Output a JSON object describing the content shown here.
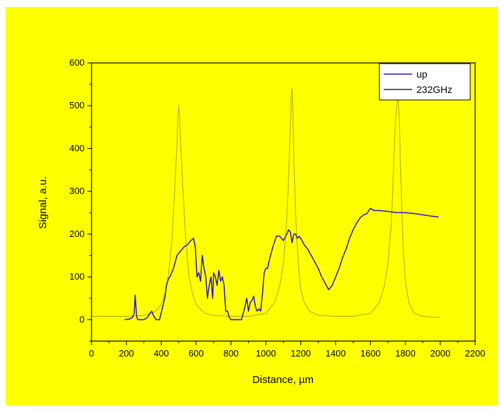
{
  "colors": {
    "background": "#ffff00",
    "up_series": "#2a14c8",
    "ghz_series": "#a8a800",
    "axis": "#000000"
  },
  "chart_data": {
    "type": "line",
    "title": "",
    "xlabel": "Distance, µm",
    "ylabel": "Signal, a.u.",
    "xlim": [
      0,
      2200
    ],
    "ylim": [
      -50,
      600
    ],
    "x_ticks": [
      0,
      200,
      400,
      600,
      800,
      1000,
      1200,
      1400,
      1600,
      1800,
      2000,
      2200
    ],
    "y_ticks": [
      0,
      100,
      200,
      300,
      400,
      500,
      600
    ],
    "grid": false,
    "legend_position": "top-right",
    "series": [
      {
        "name": "up",
        "color": "#2a14c8",
        "x": [
          190,
          220,
          235,
          245,
          250,
          258,
          265,
          300,
          320,
          335,
          345,
          355,
          370,
          390,
          405,
          420,
          430,
          440,
          450,
          470,
          490,
          510,
          530,
          550,
          570,
          585,
          595,
          605,
          615,
          625,
          635,
          645,
          655,
          665,
          675,
          685,
          695,
          700,
          710,
          720,
          730,
          740,
          750,
          760,
          770,
          780,
          790,
          800,
          810,
          830,
          860,
          880,
          890,
          900,
          910,
          920,
          930,
          940,
          950,
          960,
          970,
          980,
          990,
          1000,
          1010,
          1020,
          1040,
          1060,
          1080,
          1100,
          1120,
          1130,
          1140,
          1150,
          1160,
          1170,
          1180,
          1190,
          1200,
          1220,
          1240,
          1260,
          1280,
          1300,
          1320,
          1340,
          1360,
          1380,
          1400,
          1420,
          1440,
          1460,
          1480,
          1500,
          1520,
          1540,
          1560,
          1580,
          1590,
          1600,
          1620,
          1650,
          1700,
          1750,
          1800,
          1850,
          1900,
          1950,
          1990
        ],
        "y": [
          0,
          2,
          5,
          15,
          58,
          10,
          0,
          0,
          5,
          15,
          20,
          10,
          0,
          0,
          25,
          50,
          80,
          95,
          100,
          120,
          150,
          160,
          170,
          175,
          185,
          190,
          170,
          100,
          110,
          90,
          150,
          120,
          100,
          50,
          80,
          100,
          50,
          110,
          100,
          80,
          115,
          90,
          100,
          80,
          20,
          20,
          5,
          0,
          0,
          0,
          0,
          30,
          50,
          20,
          40,
          45,
          55,
          30,
          20,
          25,
          20,
          60,
          110,
          120,
          120,
          140,
          170,
          195,
          195,
          185,
          200,
          210,
          205,
          180,
          200,
          200,
          190,
          195,
          190,
          175,
          165,
          150,
          135,
          120,
          100,
          85,
          70,
          80,
          100,
          120,
          145,
          165,
          190,
          210,
          225,
          238,
          245,
          248,
          255,
          260,
          255,
          255,
          253,
          250,
          250,
          248,
          245,
          242,
          240
        ]
      },
      {
        "name": "232GHz",
        "color": "#a8a800",
        "x": [
          0,
          100,
          200,
          300,
          350,
          380,
          400,
          420,
          440,
          460,
          470,
          480,
          490,
          495,
          500,
          505,
          510,
          520,
          530,
          540,
          550,
          560,
          580,
          600,
          650,
          700,
          800,
          900,
          1000,
          1050,
          1080,
          1100,
          1110,
          1120,
          1130,
          1140,
          1145,
          1150,
          1155,
          1160,
          1170,
          1180,
          1190,
          1200,
          1220,
          1250,
          1300,
          1400,
          1500,
          1600,
          1650,
          1680,
          1700,
          1720,
          1730,
          1740,
          1750,
          1755,
          1760,
          1765,
          1770,
          1780,
          1790,
          1800,
          1820,
          1850,
          1900,
          1950,
          2000
        ],
        "y": [
          8,
          8,
          8,
          10,
          15,
          25,
          35,
          60,
          100,
          180,
          250,
          330,
          410,
          470,
          500,
          470,
          420,
          340,
          260,
          190,
          140,
          100,
          60,
          35,
          15,
          10,
          8,
          8,
          15,
          40,
          80,
          130,
          180,
          240,
          330,
          450,
          520,
          540,
          480,
          380,
          250,
          170,
          110,
          70,
          40,
          20,
          10,
          8,
          8,
          15,
          40,
          80,
          130,
          230,
          330,
          440,
          500,
          520,
          510,
          470,
          390,
          250,
          150,
          90,
          40,
          15,
          8,
          6,
          5
        ]
      }
    ]
  }
}
